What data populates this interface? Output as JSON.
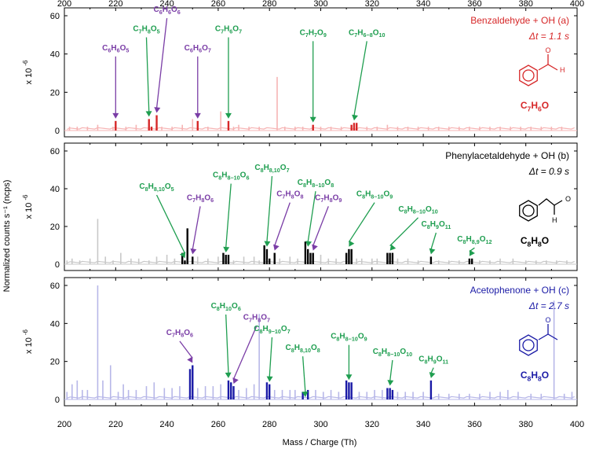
{
  "figure": {
    "ylabel": "Normalized counts s⁻¹ (ncps)",
    "xlabel": "Mass / Charge (Th)",
    "ytick_mult": "x 10",
    "ytick_exp": "-6",
    "x_ticks": [
      "200",
      "220",
      "240",
      "260",
      "280",
      "300",
      "320",
      "340",
      "360",
      "380",
      "400"
    ],
    "y_ticks": [
      "0",
      "20",
      "40",
      "60"
    ]
  },
  "chart_data": [
    {
      "type": "bar",
      "panel": "a",
      "title": "Benzaldehyde + OH (a)",
      "dt_label": "Δt = 1.1 s",
      "structure_formula": "C7H6O",
      "color": "#d62728",
      "bg_color": "#f6b4b4",
      "xlim": [
        200,
        400
      ],
      "ylim": [
        0,
        60
      ],
      "highlight": [
        [
          220,
          5
        ],
        [
          233,
          6
        ],
        [
          234,
          2
        ],
        [
          236,
          8
        ],
        [
          252,
          5
        ],
        [
          264,
          5
        ],
        [
          297,
          3
        ],
        [
          312,
          3
        ],
        [
          313,
          4
        ],
        [
          314,
          4
        ]
      ],
      "background_peaks": [
        [
          202,
          2
        ],
        [
          205,
          2
        ],
        [
          209,
          2
        ],
        [
          213,
          3
        ],
        [
          219,
          2
        ],
        [
          224,
          2
        ],
        [
          228,
          3
        ],
        [
          238,
          2
        ],
        [
          242,
          2
        ],
        [
          246,
          3
        ],
        [
          250,
          6
        ],
        [
          256,
          2
        ],
        [
          261,
          10
        ],
        [
          266,
          2
        ],
        [
          268,
          3
        ],
        [
          272,
          2
        ],
        [
          276,
          2
        ],
        [
          283,
          28
        ],
        [
          286,
          2
        ],
        [
          290,
          2
        ],
        [
          293,
          2
        ],
        [
          300,
          2
        ],
        [
          304,
          2
        ],
        [
          308,
          2
        ],
        [
          318,
          2
        ],
        [
          322,
          2
        ],
        [
          326,
          3
        ],
        [
          330,
          2
        ],
        [
          334,
          2
        ],
        [
          338,
          2
        ],
        [
          342,
          2
        ],
        [
          346,
          2
        ],
        [
          350,
          2
        ],
        [
          354,
          2
        ],
        [
          358,
          2
        ],
        [
          362,
          2
        ],
        [
          366,
          2
        ],
        [
          370,
          2
        ],
        [
          374,
          2
        ],
        [
          378,
          2
        ],
        [
          382,
          2
        ],
        [
          386,
          2
        ],
        [
          390,
          2
        ],
        [
          394,
          2
        ]
      ],
      "annotations": [
        {
          "label": "C6H6O5",
          "x": 220,
          "label_x": 220,
          "label_y": 42,
          "arrow": "purple"
        },
        {
          "label": "C7H8O5",
          "x": 233,
          "label_x": 232,
          "label_y": 52,
          "arrow": "green"
        },
        {
          "label": "C6H6O6",
          "x": 236,
          "label_x": 240,
          "label_y": 62,
          "arrow": "purple"
        },
        {
          "label": "C6H6O7",
          "x": 252,
          "label_x": 252,
          "label_y": 42,
          "arrow": "purple"
        },
        {
          "label": "C7H6O7",
          "x": 264,
          "label_x": 264,
          "label_y": 52,
          "arrow": "green"
        },
        {
          "label": "C7H7O9",
          "x": 297,
          "label_x": 297,
          "label_y": 50,
          "arrow": "green"
        },
        {
          "label": "C7H6−8O10",
          "x": 313,
          "label_x": 318,
          "label_y": 50,
          "arrow": "green"
        }
      ]
    },
    {
      "type": "bar",
      "panel": "b",
      "title": "Phenylacetaldehyde + OH (b)",
      "dt_label": "Δt = 0.9 s",
      "structure_formula": "C8H8O",
      "color": "#000000",
      "bg_color": "#c8c8c8",
      "xlim": [
        200,
        400
      ],
      "ylim": [
        0,
        60
      ],
      "highlight": [
        [
          246,
          6
        ],
        [
          247,
          2
        ],
        [
          248,
          19
        ],
        [
          250,
          4
        ],
        [
          262,
          6
        ],
        [
          263,
          5
        ],
        [
          264,
          5
        ],
        [
          278,
          10
        ],
        [
          279,
          8
        ],
        [
          280,
          3
        ],
        [
          282,
          6
        ],
        [
          294,
          12
        ],
        [
          295,
          8
        ],
        [
          296,
          6
        ],
        [
          297,
          6
        ],
        [
          310,
          6
        ],
        [
          311,
          8
        ],
        [
          312,
          8
        ],
        [
          326,
          6
        ],
        [
          327,
          6
        ],
        [
          328,
          6
        ],
        [
          343,
          4
        ],
        [
          358,
          3
        ],
        [
          359,
          3
        ]
      ],
      "background_peaks": [
        [
          201,
          2
        ],
        [
          203,
          3
        ],
        [
          206,
          2
        ],
        [
          210,
          3
        ],
        [
          213,
          24
        ],
        [
          216,
          4
        ],
        [
          219,
          2
        ],
        [
          222,
          6
        ],
        [
          226,
          3
        ],
        [
          229,
          3
        ],
        [
          233,
          2
        ],
        [
          236,
          4
        ],
        [
          240,
          5
        ],
        [
          243,
          3
        ],
        [
          252,
          4
        ],
        [
          256,
          3
        ],
        [
          260,
          4
        ],
        [
          266,
          2
        ],
        [
          270,
          4
        ],
        [
          274,
          4
        ],
        [
          276,
          2
        ],
        [
          284,
          3
        ],
        [
          288,
          4
        ],
        [
          291,
          3
        ],
        [
          300,
          5
        ],
        [
          303,
          3
        ],
        [
          306,
          3
        ],
        [
          314,
          3
        ],
        [
          316,
          3
        ],
        [
          320,
          3
        ],
        [
          322,
          3
        ],
        [
          330,
          3
        ],
        [
          334,
          3
        ],
        [
          338,
          2
        ],
        [
          346,
          2
        ],
        [
          350,
          2
        ],
        [
          354,
          2
        ],
        [
          362,
          2
        ],
        [
          366,
          2
        ],
        [
          370,
          3
        ],
        [
          375,
          3
        ],
        [
          380,
          2
        ],
        [
          384,
          2
        ],
        [
          388,
          2
        ],
        [
          392,
          2
        ],
        [
          396,
          2
        ]
      ],
      "annotations": [
        {
          "label": "C8H8,10O5",
          "x": 247,
          "label_x": 236,
          "label_y": 40,
          "arrow": "green"
        },
        {
          "label": "C7H8O6",
          "x": 250,
          "label_x": 253,
          "label_y": 34,
          "arrow": "purple"
        },
        {
          "label": "C8H8−10O6",
          "x": 263,
          "label_x": 265,
          "label_y": 46,
          "arrow": "green"
        },
        {
          "label": "C8H8,10O7",
          "x": 279,
          "label_x": 281,
          "label_y": 50,
          "arrow": "green"
        },
        {
          "label": "C7H8O8",
          "x": 282,
          "label_x": 288,
          "label_y": 36,
          "arrow": "purple"
        },
        {
          "label": "C8H8−10O8",
          "x": 295,
          "label_x": 298,
          "label_y": 42,
          "arrow": "green"
        },
        {
          "label": "C7H8O9",
          "x": 297,
          "label_x": 303,
          "label_y": 34,
          "arrow": "purple"
        },
        {
          "label": "C8H8−10O9",
          "x": 311,
          "label_x": 321,
          "label_y": 36,
          "arrow": "green"
        },
        {
          "label": "C8H8−10O10",
          "x": 327,
          "label_x": 338,
          "label_y": 28,
          "arrow": "green"
        },
        {
          "label": "C8H9O11",
          "x": 343,
          "label_x": 345,
          "label_y": 20,
          "arrow": "green"
        },
        {
          "label": "C8H8,9O12",
          "x": 358,
          "label_x": 360,
          "label_y": 12,
          "arrow": "green"
        }
      ]
    },
    {
      "type": "bar",
      "panel": "c",
      "title": "Acetophenone + OH (c)",
      "dt_label": "Δt = 2.7 s",
      "structure_formula": "C8H8O",
      "color": "#1a1aa6",
      "bg_color": "#b7b7e8",
      "xlim": [
        200,
        400
      ],
      "ylim": [
        0,
        60
      ],
      "highlight": [
        [
          249,
          16
        ],
        [
          250,
          18
        ],
        [
          264,
          10
        ],
        [
          265,
          9
        ],
        [
          266,
          7
        ],
        [
          279,
          9
        ],
        [
          280,
          8
        ],
        [
          293,
          4
        ],
        [
          295,
          5
        ],
        [
          310,
          10
        ],
        [
          311,
          9
        ],
        [
          312,
          9
        ],
        [
          326,
          6
        ],
        [
          327,
          6
        ],
        [
          328,
          5
        ],
        [
          343,
          10
        ]
      ],
      "background_peaks": [
        [
          201,
          4
        ],
        [
          203,
          8
        ],
        [
          205,
          10
        ],
        [
          207,
          5
        ],
        [
          209,
          5
        ],
        [
          213,
          60
        ],
        [
          215,
          10
        ],
        [
          218,
          18
        ],
        [
          221,
          4
        ],
        [
          223,
          8
        ],
        [
          225,
          5
        ],
        [
          228,
          5
        ],
        [
          232,
          7
        ],
        [
          235,
          9
        ],
        [
          239,
          6
        ],
        [
          242,
          6
        ],
        [
          245,
          7
        ],
        [
          252,
          6
        ],
        [
          255,
          7
        ],
        [
          258,
          7
        ],
        [
          261,
          8
        ],
        [
          268,
          5
        ],
        [
          271,
          6
        ],
        [
          274,
          8
        ],
        [
          276,
          45
        ],
        [
          282,
          5
        ],
        [
          285,
          5
        ],
        [
          288,
          5
        ],
        [
          290,
          5
        ],
        [
          298,
          5
        ],
        [
          301,
          4
        ],
        [
          304,
          5
        ],
        [
          307,
          4
        ],
        [
          315,
          4
        ],
        [
          318,
          4
        ],
        [
          321,
          5
        ],
        [
          324,
          5
        ],
        [
          330,
          4
        ],
        [
          333,
          4
        ],
        [
          336,
          4
        ],
        [
          340,
          4
        ],
        [
          346,
          3
        ],
        [
          350,
          3
        ],
        [
          354,
          3
        ],
        [
          358,
          3
        ],
        [
          362,
          3
        ],
        [
          366,
          4
        ],
        [
          370,
          4
        ],
        [
          373,
          5
        ],
        [
          377,
          4
        ],
        [
          382,
          3
        ],
        [
          386,
          3
        ],
        [
          391,
          52
        ],
        [
          395,
          3
        ],
        [
          398,
          4
        ]
      ],
      "annotations": [
        {
          "label": "C7H8O6",
          "x": 250,
          "label_x": 245,
          "label_y": 34,
          "arrow": "purple"
        },
        {
          "label": "C8H10O6",
          "x": 264,
          "label_x": 263,
          "label_y": 48,
          "arrow": "green"
        },
        {
          "label": "C7H8O7",
          "x": 266,
          "label_x": 275,
          "label_y": 42,
          "arrow": "purple"
        },
        {
          "label": "C8H9−10O7",
          "x": 280,
          "label_x": 281,
          "label_y": 36,
          "arrow": "green"
        },
        {
          "label": "C8H8,10O8",
          "x": 294,
          "label_x": 293,
          "label_y": 26,
          "arrow": "green"
        },
        {
          "label": "C8H8−10O9",
          "x": 311,
          "label_x": 311,
          "label_y": 32,
          "arrow": "green"
        },
        {
          "label": "C8H8−10O10",
          "x": 327,
          "label_x": 328,
          "label_y": 24,
          "arrow": "green"
        },
        {
          "label": "C8H9O11",
          "x": 343,
          "label_x": 344,
          "label_y": 20,
          "arrow": "green"
        }
      ]
    }
  ]
}
